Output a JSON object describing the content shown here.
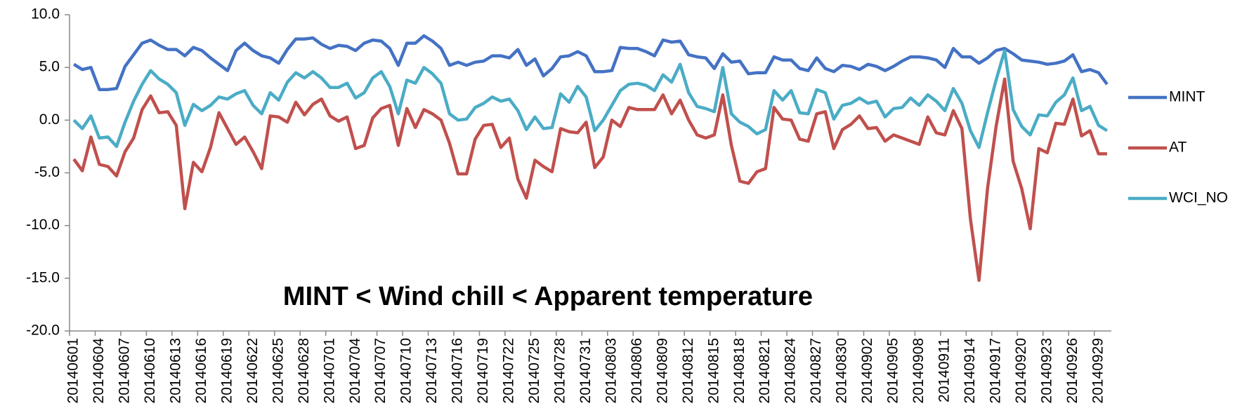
{
  "chart_data": {
    "type": "line",
    "annotation": "MINT < Wind chill < Apparent temperature",
    "categories": [
      "20140601",
      null,
      null,
      "20140604",
      null,
      null,
      "20140607",
      null,
      null,
      "20140610",
      null,
      null,
      "20140613",
      null,
      null,
      "20140616",
      null,
      null,
      "20140619",
      null,
      null,
      "20140622",
      null,
      null,
      "20140625",
      null,
      null,
      "20140628",
      null,
      null,
      "20140701",
      null,
      null,
      "20140704",
      null,
      null,
      "20140707",
      null,
      null,
      "20140710",
      null,
      null,
      "20140713",
      null,
      null,
      "20140716",
      null,
      null,
      "20140719",
      null,
      null,
      "20140722",
      null,
      null,
      "20140725",
      null,
      null,
      "20140728",
      null,
      null,
      "20140731",
      null,
      null,
      "20140803",
      null,
      null,
      "20140806",
      null,
      null,
      "20140809",
      null,
      null,
      "20140812",
      null,
      null,
      "20140815",
      null,
      null,
      "20140818",
      null,
      null,
      "20140821",
      null,
      null,
      "20140824",
      null,
      null,
      "20140827",
      null,
      null,
      "20140830",
      null,
      null,
      "20140902",
      null,
      null,
      "20140905",
      null,
      null,
      "20140908",
      null,
      null,
      "20140911",
      null,
      null,
      "20140914",
      null,
      null,
      "20140917",
      null,
      null,
      "20140920",
      null,
      null,
      "20140923",
      null,
      null,
      "20140926",
      null,
      null,
      "20140929",
      null
    ],
    "series": [
      {
        "name": "MINT",
        "color": "#4472c4",
        "values": [
          5.3,
          4.8,
          5.0,
          2.9,
          2.9,
          3.0,
          5.1,
          6.2,
          7.3,
          7.6,
          7.1,
          6.7,
          6.7,
          6.1,
          6.9,
          6.6,
          5.9,
          5.3,
          4.7,
          6.6,
          7.3,
          6.6,
          6.1,
          5.9,
          5.4,
          6.7,
          7.7,
          7.7,
          7.8,
          7.2,
          6.8,
          7.1,
          7.0,
          6.6,
          7.3,
          7.6,
          7.5,
          6.8,
          5.2,
          7.3,
          7.3,
          8.0,
          7.5,
          6.8,
          5.2,
          5.5,
          5.2,
          5.5,
          5.6,
          6.1,
          6.1,
          5.9,
          6.7,
          5.2,
          5.8,
          4.2,
          4.9,
          6.0,
          6.1,
          6.5,
          6.1,
          4.6,
          4.6,
          4.7,
          6.9,
          6.8,
          6.8,
          6.5,
          6.1,
          7.6,
          7.4,
          7.5,
          6.2,
          6.0,
          5.9,
          4.9,
          6.3,
          5.5,
          5.6,
          4.4,
          4.5,
          4.5,
          6.0,
          5.7,
          5.7,
          4.9,
          4.7,
          5.9,
          4.9,
          4.6,
          5.2,
          5.1,
          4.8,
          5.3,
          5.1,
          4.7,
          5.1,
          5.6,
          6.0,
          6.0,
          5.9,
          5.7,
          5.0,
          6.8,
          6.0,
          6.0,
          5.4,
          5.9,
          6.6,
          6.8,
          6.3,
          5.7,
          5.6,
          5.5,
          5.3,
          5.4,
          5.6,
          6.2,
          4.6,
          4.8,
          4.5,
          3.4
        ]
      },
      {
        "name": "AT",
        "color": "#c0504d",
        "values": [
          -3.7,
          -4.8,
          -1.6,
          -4.2,
          -4.4,
          -5.3,
          -3.0,
          -1.7,
          1.0,
          2.3,
          0.7,
          0.8,
          -0.5,
          -8.4,
          -4.0,
          -4.9,
          -2.6,
          0.7,
          -0.8,
          -2.3,
          -1.6,
          -3.0,
          -4.6,
          0.4,
          0.3,
          -0.2,
          1.7,
          0.5,
          1.5,
          2.0,
          0.4,
          -0.1,
          0.3,
          -2.7,
          -2.4,
          0.2,
          1.1,
          1.4,
          -2.4,
          1.1,
          -0.7,
          1.0,
          0.6,
          0.0,
          -2.2,
          -5.1,
          -5.1,
          -1.8,
          -0.5,
          -0.4,
          -2.6,
          -1.7,
          -5.6,
          -7.4,
          -3.8,
          -4.4,
          -4.9,
          -0.8,
          -1.1,
          -1.2,
          -0.2,
          -4.5,
          -3.5,
          0.0,
          -0.6,
          1.2,
          1.0,
          1.0,
          1.0,
          2.4,
          0.6,
          1.9,
          0.0,
          -1.4,
          -1.7,
          -1.4,
          2.4,
          -2.4,
          -5.8,
          -6.0,
          -4.9,
          -4.6,
          1.2,
          0.1,
          0.0,
          -1.8,
          -2.0,
          0.6,
          0.8,
          -2.7,
          -0.9,
          -0.4,
          0.4,
          -0.8,
          -0.7,
          -2.0,
          -1.4,
          -1.7,
          -2.0,
          -2.3,
          0.3,
          -1.2,
          -1.4,
          0.9,
          -0.8,
          -9.4,
          -15.2,
          -6.5,
          -0.6,
          3.9,
          -3.9,
          -6.5,
          -10.3,
          -2.7,
          -3.1,
          -0.3,
          -0.4,
          2.0,
          -1.5,
          -1.0,
          -3.2,
          -3.2
        ]
      },
      {
        "name": "WCI_NO",
        "color": "#4bacc6",
        "values": [
          0.0,
          -0.8,
          0.4,
          -1.7,
          -1.6,
          -2.5,
          -0.2,
          1.8,
          3.4,
          4.7,
          3.9,
          3.4,
          2.6,
          -0.5,
          1.5,
          0.9,
          1.4,
          2.2,
          2.0,
          2.5,
          2.8,
          1.4,
          0.6,
          2.6,
          1.9,
          3.6,
          4.5,
          4.0,
          4.6,
          4.0,
          3.1,
          3.1,
          3.5,
          2.1,
          2.6,
          4.0,
          4.6,
          3.2,
          0.6,
          3.8,
          3.5,
          5.0,
          4.4,
          3.5,
          0.6,
          0.0,
          0.1,
          1.2,
          1.6,
          2.2,
          1.8,
          2.0,
          0.9,
          -0.9,
          0.3,
          -0.8,
          -0.7,
          2.5,
          1.7,
          3.2,
          2.2,
          -1.0,
          0.0,
          1.4,
          2.8,
          3.4,
          3.5,
          3.3,
          2.8,
          4.3,
          3.6,
          5.3,
          2.6,
          1.3,
          1.1,
          0.8,
          5.0,
          0.6,
          -0.2,
          -0.6,
          -1.3,
          -0.9,
          2.8,
          1.9,
          2.8,
          0.7,
          0.6,
          2.9,
          2.6,
          0.1,
          1.4,
          1.6,
          2.1,
          1.6,
          1.8,
          0.3,
          1.1,
          1.2,
          2.1,
          1.4,
          2.4,
          1.8,
          0.9,
          3.0,
          1.6,
          -1.0,
          -2.6,
          0.7,
          3.8,
          6.6,
          1.0,
          -0.6,
          -1.4,
          0.5,
          0.4,
          1.7,
          2.4,
          4.0,
          0.9,
          1.3,
          -0.5,
          -1.0
        ]
      }
    ],
    "ylim": [
      -20,
      10
    ],
    "yticks": [
      {
        "value": -20,
        "label": "-20.0"
      },
      {
        "value": -15,
        "label": "-15.0"
      },
      {
        "value": -10,
        "label": "-10.0"
      },
      {
        "value": -5,
        "label": "-5.0"
      },
      {
        "value": 0,
        "label": "0.0"
      },
      {
        "value": 5,
        "label": "5.0"
      },
      {
        "value": 10,
        "label": "10.0"
      }
    ],
    "grid": false,
    "legend": "right"
  }
}
